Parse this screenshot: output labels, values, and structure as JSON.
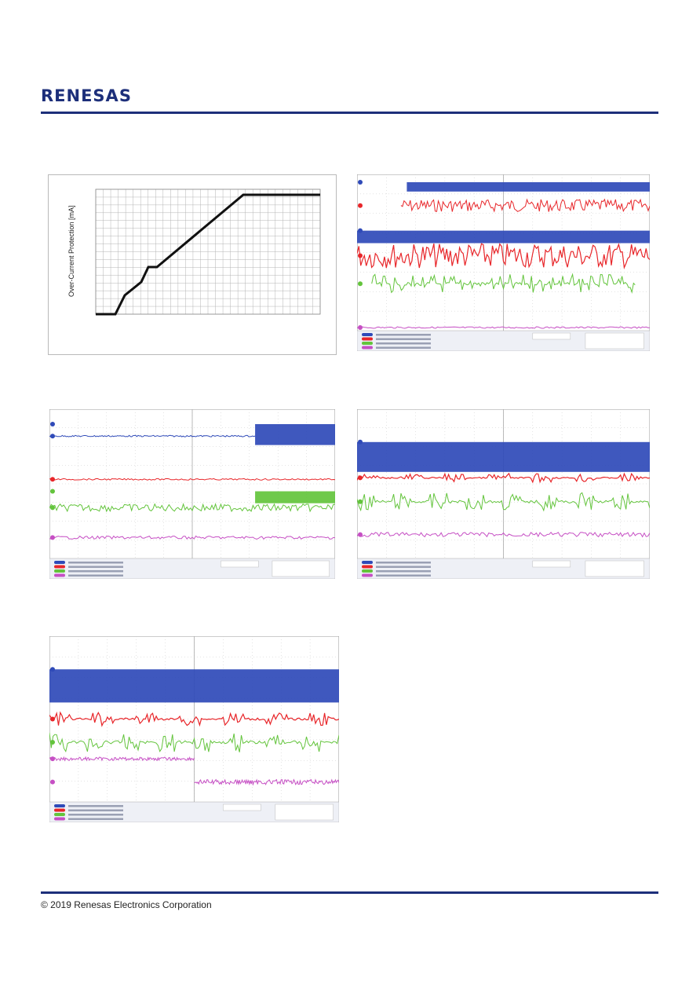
{
  "header": {
    "logo_text": "RENESAS"
  },
  "footer": {
    "copyright": "© 2019 Renesas Electronics Corporation"
  },
  "ocp_graph": {
    "ylabel": "Over-Current Protection [mA]"
  },
  "colors": {
    "brand": "#1d2f7a",
    "ch1": "#2f4ab8",
    "ch2": "#e8262a",
    "ch3": "#63c43c",
    "ch4": "#c64fc4"
  },
  "scope_captures": [
    {
      "id": "scope-1",
      "channels": [
        "blue",
        "red",
        "green",
        "magenta"
      ]
    },
    {
      "id": "scope-2",
      "channels": [
        "blue",
        "red",
        "green",
        "magenta"
      ]
    },
    {
      "id": "scope-3",
      "channels": [
        "blue",
        "red",
        "green",
        "magenta"
      ]
    },
    {
      "id": "scope-4",
      "channels": [
        "blue",
        "red",
        "green",
        "magenta"
      ]
    }
  ]
}
